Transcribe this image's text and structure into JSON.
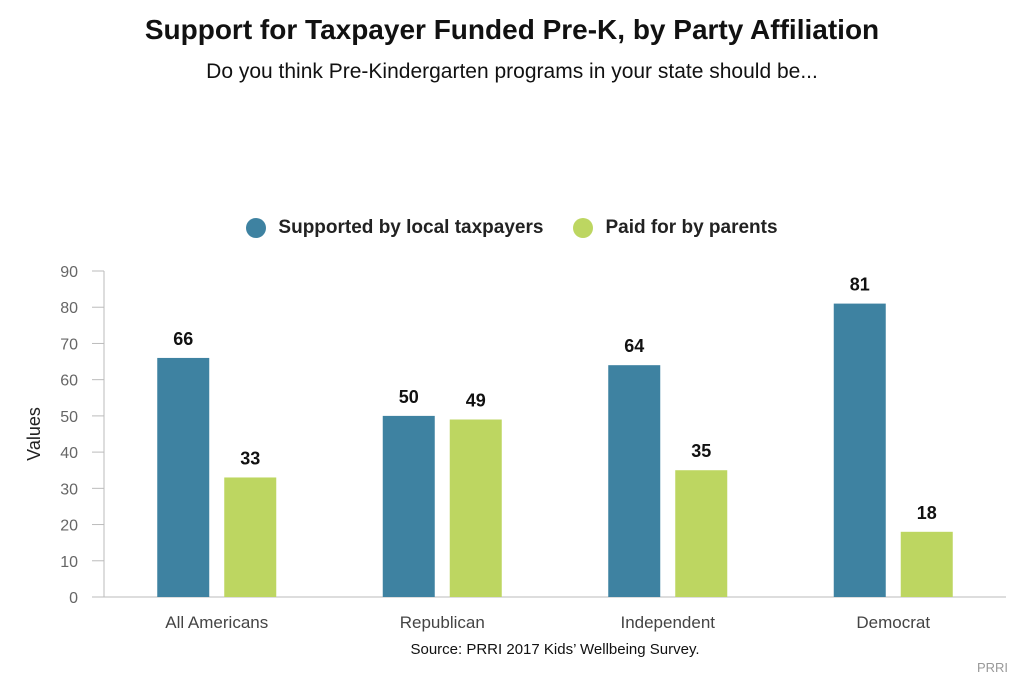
{
  "chart_data": {
    "type": "bar",
    "title": "Support for Taxpayer Funded Pre-K, by Party Affiliation",
    "subtitle": "Do you think Pre-Kindergarten programs in your state should be...",
    "categories": [
      "All Americans",
      "Republican",
      "Independent",
      "Democrat"
    ],
    "series": [
      {
        "name": "Supported by local taxpayers",
        "color": "#3E82A1",
        "values": [
          66,
          50,
          64,
          81
        ]
      },
      {
        "name": "Paid for by parents",
        "color": "#BDD661",
        "values": [
          33,
          49,
          35,
          18
        ]
      }
    ],
    "xlabel": "",
    "ylabel": "Values",
    "ylim": [
      0,
      90
    ],
    "yticks": [
      0,
      10,
      20,
      30,
      40,
      50,
      60,
      70,
      80,
      90
    ],
    "grid": false,
    "legend_position": "top-center",
    "data_labels": true
  },
  "footer": {
    "source": "Source: PRRI 2017 Kids’ Wellbeing Survey.",
    "credit": "PRRI"
  }
}
